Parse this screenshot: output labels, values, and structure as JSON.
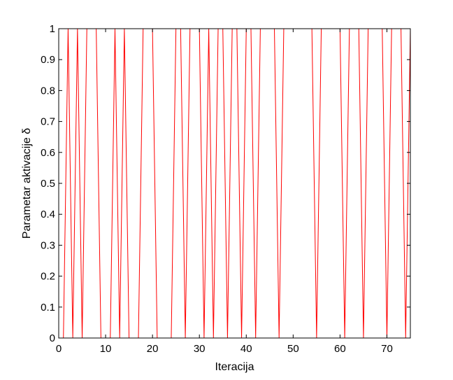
{
  "chart_data": {
    "type": "line",
    "title": "",
    "xlabel": "Iteracija",
    "ylabel": "Parametar aktivacije δ",
    "xlim": [
      0,
      75
    ],
    "ylim": [
      0,
      1
    ],
    "xticks": [
      0,
      10,
      20,
      30,
      40,
      50,
      60,
      70
    ],
    "yticks": [
      0,
      0.1,
      0.2,
      0.3,
      0.4,
      0.5,
      0.6,
      0.7,
      0.8,
      0.9,
      1
    ],
    "grid": false,
    "legend": "none",
    "line_color": "#ff0000",
    "series": [
      {
        "x": [
          0,
          1,
          2,
          3,
          4,
          5,
          6,
          7,
          8,
          9,
          10,
          11,
          12,
          13,
          14,
          15,
          16,
          17,
          18,
          19,
          20,
          21,
          22,
          23,
          24,
          25,
          26,
          27,
          28,
          29,
          30,
          31,
          32,
          33,
          34,
          35,
          36,
          37,
          38,
          39,
          40,
          41,
          42,
          43,
          44,
          45,
          46,
          47,
          48,
          49,
          50,
          51,
          52,
          53,
          54,
          55,
          56,
          57,
          58,
          59,
          60,
          61,
          62,
          63,
          64,
          65,
          66,
          67,
          68,
          69,
          70,
          71,
          72,
          73,
          74,
          75
        ],
        "values": [
          0,
          0,
          1,
          0,
          1,
          0,
          1,
          1,
          1,
          0,
          0,
          0,
          1,
          0,
          1,
          0,
          0,
          0,
          1,
          1,
          1,
          0,
          0,
          0,
          0,
          1,
          1,
          0,
          1,
          1,
          1,
          0,
          1,
          0,
          1,
          1,
          0,
          1,
          1,
          0,
          1,
          1,
          0,
          1,
          1,
          1,
          1,
          0,
          1,
          1,
          1,
          1,
          1,
          1,
          1,
          0,
          1,
          1,
          1,
          1,
          1,
          0,
          1,
          1,
          1,
          0,
          1,
          1,
          1,
          1,
          0,
          1,
          1,
          1,
          0,
          1
        ]
      }
    ]
  }
}
